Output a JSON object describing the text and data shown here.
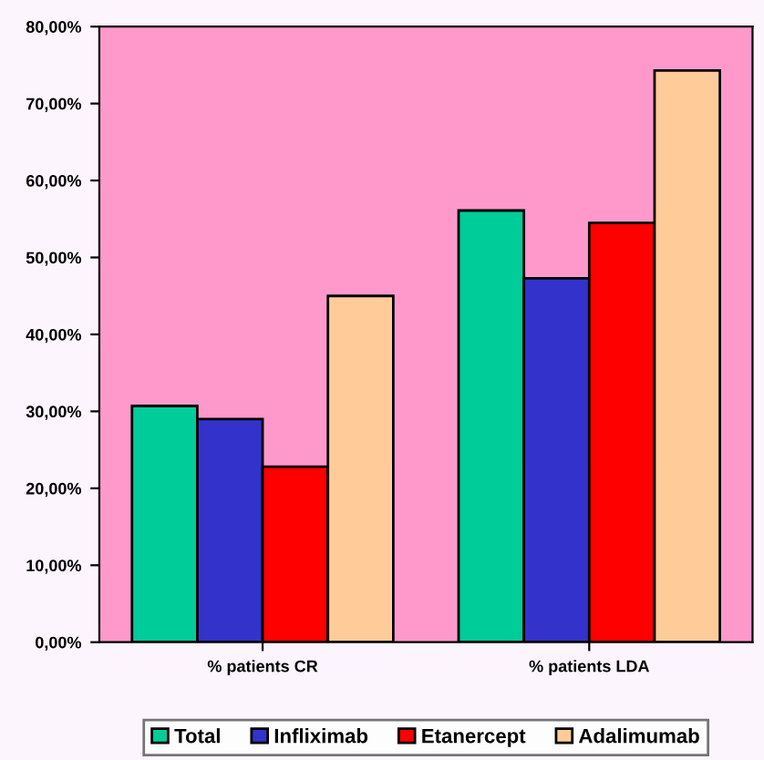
{
  "chart_data": {
    "type": "bar",
    "categories": [
      "% patients CR",
      "% patients LDA"
    ],
    "series": [
      {
        "name": "Total",
        "color": "#00cc99",
        "values": [
          30.7,
          56.1
        ]
      },
      {
        "name": "Infliximab",
        "color": "#3333cc",
        "values": [
          29.0,
          47.3
        ]
      },
      {
        "name": "Etanercept",
        "color": "#ff0000",
        "values": [
          22.8,
          54.5
        ]
      },
      {
        "name": "Adalimumab",
        "color": "#ffcc99",
        "values": [
          45.0,
          74.3
        ]
      }
    ],
    "ylim": [
      0,
      80
    ],
    "yticks": [
      {
        "value": 0,
        "label": "0,00%"
      },
      {
        "value": 10,
        "label": "10,00%"
      },
      {
        "value": 20,
        "label": "20,00%"
      },
      {
        "value": 30,
        "label": "30,00%"
      },
      {
        "value": 40,
        "label": "40,00%"
      },
      {
        "value": 50,
        "label": "50,00%"
      },
      {
        "value": 60,
        "label": "60,00%"
      },
      {
        "value": 70,
        "label": "70,00%"
      },
      {
        "value": 80,
        "label": "80,00%"
      }
    ],
    "grid": false,
    "legend": "bottom"
  }
}
